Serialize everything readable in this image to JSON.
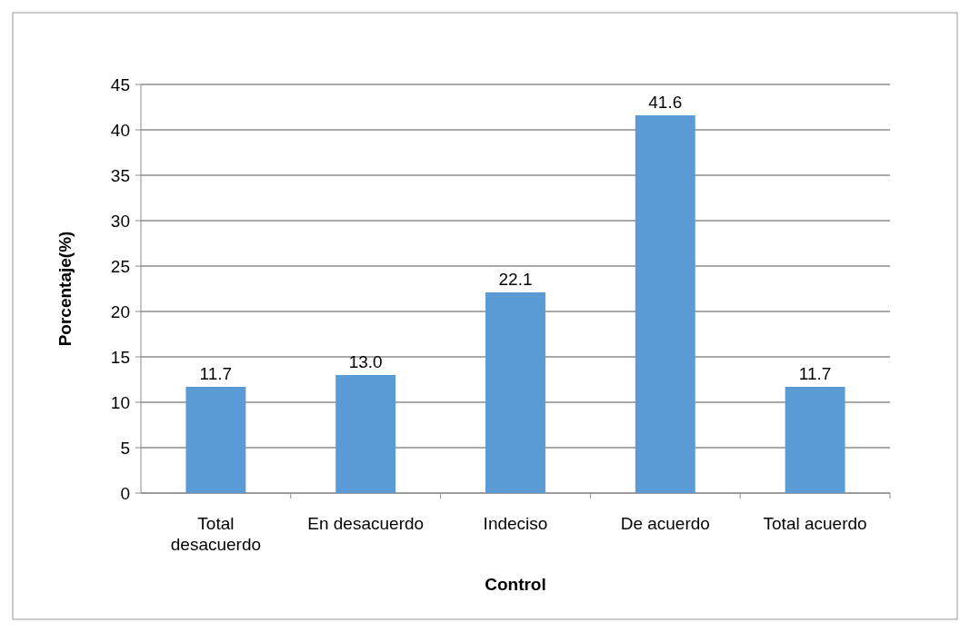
{
  "chart_data": {
    "type": "bar",
    "xlabel": "Control",
    "ylabel": "Porcentaje(%)",
    "categories": [
      "Total desacuerdo",
      "En desacuerdo",
      "Indeciso",
      "De acuerdo",
      "Total acuerdo"
    ],
    "values": [
      11.7,
      13.0,
      22.1,
      41.6,
      11.7
    ],
    "value_labels": [
      "11.7",
      "13.0",
      "22.1",
      "41.6",
      "11.7"
    ],
    "color": "#5b9bd5",
    "ylim": [
      0,
      45
    ],
    "yticks": [
      0,
      5,
      10,
      15,
      20,
      25,
      30,
      35,
      40,
      45
    ],
    "grid": "y"
  }
}
